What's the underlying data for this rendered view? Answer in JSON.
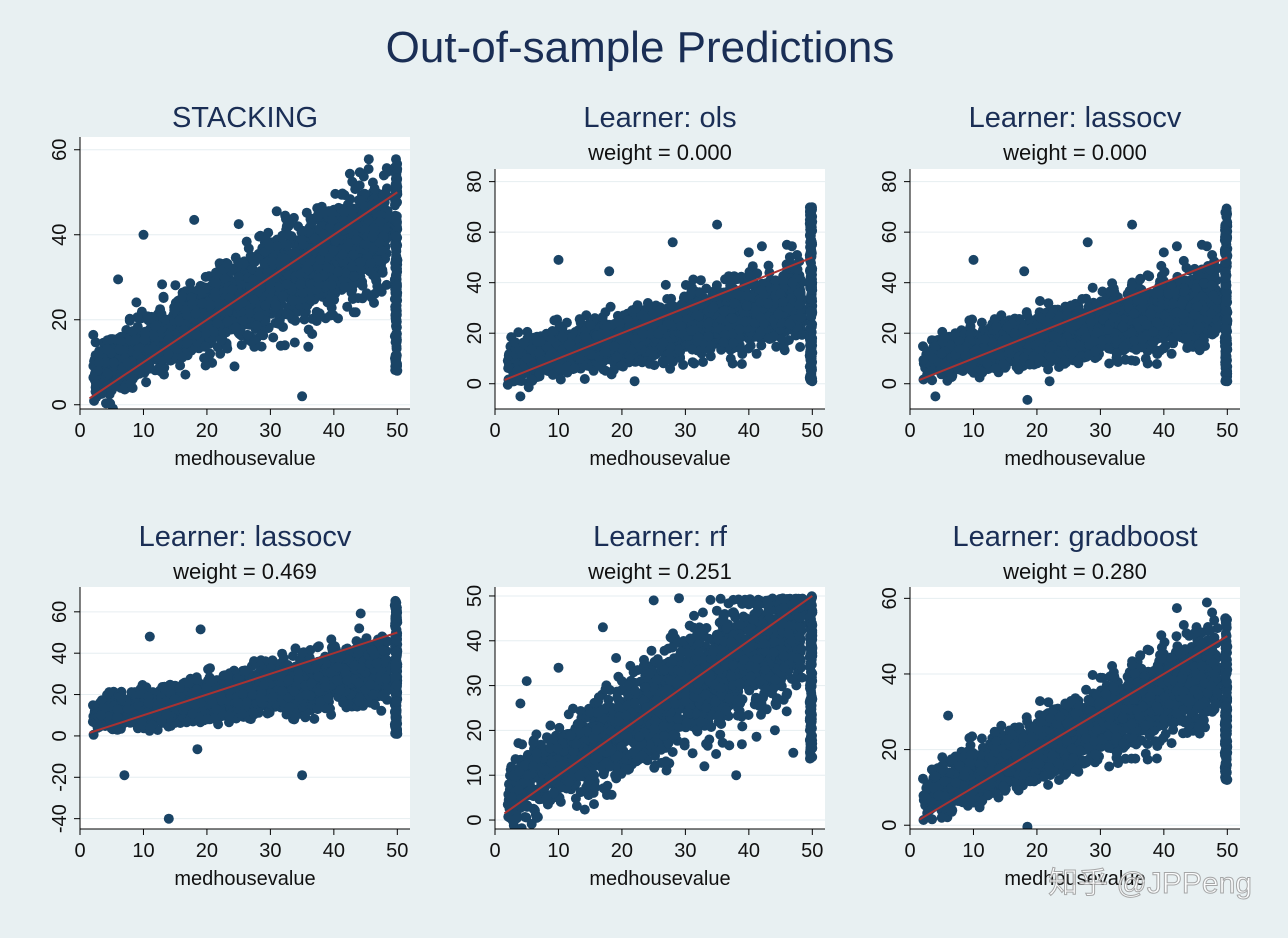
{
  "title": "Out-of-sample Predictions",
  "watermark": "知乎 @JPPeng",
  "colors": {
    "background": "#e8f0f2",
    "plot_bg": "#ffffff",
    "points": "#1a4466",
    "fit_line": "#a83232",
    "grid": "#e6eef1"
  },
  "chart_data": [
    {
      "type": "scatter",
      "title": "STACKING",
      "subtitle": "",
      "xlabel": "medhousevalue",
      "ylabel": "",
      "xlim": [
        0,
        52
      ],
      "ylim": [
        -1,
        63
      ],
      "xticks": [
        0,
        10,
        20,
        30,
        40,
        50
      ],
      "yticks": [
        0,
        20,
        40,
        60
      ],
      "fit_line": [
        [
          1.5,
          1.5
        ],
        [
          50,
          50
        ]
      ],
      "trend": {
        "slope": 0.75,
        "intercept": 5.5,
        "spread": 5.5,
        "n": 2200,
        "cap_max": 58,
        "cap_min": 8
      },
      "outliers": [
        [
          35,
          2
        ],
        [
          50,
          8
        ],
        [
          10,
          40
        ],
        [
          18,
          43.5
        ],
        [
          25,
          42.5
        ],
        [
          46,
          47
        ],
        [
          6,
          29.5
        ],
        [
          8,
          5
        ],
        [
          3,
          10
        ]
      ]
    },
    {
      "type": "scatter",
      "title": "Learner: ols",
      "subtitle": "weight = 0.000",
      "xlabel": "medhousevalue",
      "ylabel": "",
      "xlim": [
        0,
        52
      ],
      "ylim": [
        -10,
        85
      ],
      "xticks": [
        0,
        10,
        20,
        30,
        40,
        50
      ],
      "yticks": [
        0,
        20,
        40,
        60,
        80
      ],
      "fit_line": [
        [
          1.5,
          1.5
        ],
        [
          50,
          50
        ]
      ],
      "trend": {
        "slope": 0.5,
        "intercept": 8,
        "spread": 6,
        "n": 2200,
        "cap_max": 70,
        "cap_min": 1
      },
      "outliers": [
        [
          35,
          63
        ],
        [
          10,
          49
        ],
        [
          28,
          56
        ],
        [
          18,
          44.5
        ],
        [
          4,
          -5
        ],
        [
          22,
          1
        ],
        [
          50,
          1
        ],
        [
          40,
          52
        ],
        [
          46,
          55
        ]
      ]
    },
    {
      "type": "scatter",
      "title": "Learner: lassocv",
      "subtitle": "weight = 0.000",
      "xlabel": "medhousevalue",
      "ylabel": "",
      "xlim": [
        0,
        52
      ],
      "ylim": [
        -10,
        85
      ],
      "xticks": [
        0,
        10,
        20,
        30,
        40,
        50
      ],
      "yticks": [
        0,
        20,
        40,
        60,
        80
      ],
      "fit_line": [
        [
          1.5,
          1.5
        ],
        [
          50,
          50
        ]
      ],
      "trend": {
        "slope": 0.5,
        "intercept": 8,
        "spread": 6,
        "n": 2200,
        "cap_max": 70,
        "cap_min": 1
      },
      "outliers": [
        [
          35,
          63
        ],
        [
          10,
          49
        ],
        [
          28,
          56
        ],
        [
          18,
          44.5
        ],
        [
          4,
          -5
        ],
        [
          22,
          1
        ],
        [
          50,
          1
        ],
        [
          40,
          52
        ],
        [
          46,
          55
        ]
      ]
    },
    {
      "type": "scatter",
      "title": "Learner: lassocv",
      "subtitle": "weight = 0.469",
      "xlabel": "medhousevalue",
      "ylabel": "",
      "xlim": [
        0,
        52
      ],
      "ylim": [
        -45,
        72
      ],
      "xticks": [
        0,
        10,
        20,
        30,
        40,
        50
      ],
      "yticks": [
        -40,
        -20,
        0,
        20,
        40,
        60
      ],
      "fit_line": [
        [
          1.5,
          1.5
        ],
        [
          50,
          50
        ]
      ],
      "trend": {
        "slope": 0.5,
        "intercept": 8,
        "spread": 6,
        "n": 2200,
        "cap_max": 66,
        "cap_min": 1
      },
      "outliers": [
        [
          7,
          -19
        ],
        [
          35,
          -19
        ],
        [
          14,
          -40
        ],
        [
          11,
          48
        ],
        [
          19,
          51.5
        ],
        [
          50,
          1
        ],
        [
          44,
          52
        ]
      ]
    },
    {
      "type": "scatter",
      "title": "Learner: rf",
      "subtitle": "weight = 0.251",
      "xlabel": "medhousevalue",
      "ylabel": "",
      "xlim": [
        0,
        52
      ],
      "ylim": [
        -2,
        52
      ],
      "xticks": [
        0,
        10,
        20,
        30,
        40,
        50
      ],
      "yticks": [
        0,
        10,
        20,
        30,
        40,
        50
      ],
      "fit_line": [
        [
          1.5,
          1.5
        ],
        [
          50,
          50
        ]
      ],
      "trend": {
        "slope": 0.85,
        "intercept": 3.5,
        "spread": 6,
        "n": 2200,
        "cap_max": 50,
        "cap_min": 13,
        "clamp_top": 49.5
      },
      "outliers": [
        [
          25,
          49
        ],
        [
          10,
          34
        ],
        [
          17,
          43
        ],
        [
          5,
          31
        ],
        [
          29,
          49.5
        ],
        [
          38,
          10
        ],
        [
          33,
          12
        ],
        [
          4,
          26
        ],
        [
          47,
          15
        ]
      ]
    },
    {
      "type": "scatter",
      "title": "Learner: gradboost",
      "subtitle": "weight = 0.280",
      "xlabel": "medhousevalue",
      "ylabel": "",
      "xlim": [
        0,
        52
      ],
      "ylim": [
        -1,
        63
      ],
      "xticks": [
        0,
        10,
        20,
        30,
        40,
        50
      ],
      "yticks": [
        0,
        20,
        40,
        60
      ],
      "fit_line": [
        [
          1.5,
          1.5
        ],
        [
          50,
          50
        ]
      ],
      "trend": {
        "slope": 0.72,
        "intercept": 6,
        "spread": 5,
        "n": 2200,
        "cap_max": 55,
        "cap_min": 12
      },
      "outliers": [
        [
          6,
          29
        ],
        [
          5,
          2
        ],
        [
          30,
          39
        ],
        [
          46,
          48
        ],
        [
          42,
          50
        ],
        [
          50,
          12
        ],
        [
          25,
          16
        ]
      ]
    }
  ]
}
